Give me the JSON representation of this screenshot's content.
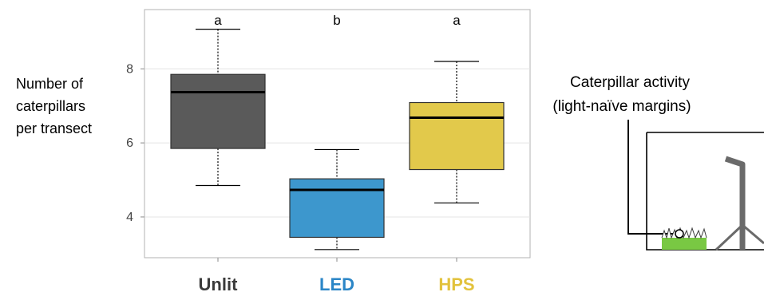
{
  "chart_data": {
    "type": "box",
    "ylabel_lines": [
      "Number of",
      "caterpillars",
      "per transect"
    ],
    "ylim": [
      2.9,
      9.6
    ],
    "yticks": [
      4,
      6,
      8
    ],
    "grid": true,
    "categories": [
      {
        "name": "Unlit",
        "color": "#5a5a5a",
        "label_color": "#3a3a3a",
        "letter": "a",
        "min": 4.85,
        "q1": 5.85,
        "median": 7.37,
        "q3": 7.85,
        "max": 9.07
      },
      {
        "name": "LED",
        "color": "#3d97cd",
        "label_color": "#2b86c7",
        "letter": "b",
        "min": 3.12,
        "q1": 3.45,
        "median": 4.73,
        "q3": 5.03,
        "max": 5.82
      },
      {
        "name": "HPS",
        "color": "#e2c94b",
        "label_color": "#e2c23c",
        "letter": "a",
        "min": 4.38,
        "q1": 5.28,
        "median": 6.68,
        "q3": 7.09,
        "max": 8.2
      }
    ]
  },
  "inset": {
    "title_line1": "Caterpillar activity",
    "title_line2": "(light-naïve margins)",
    "grass_color": "#79c843",
    "lamp_color": "#6a6a6a"
  }
}
